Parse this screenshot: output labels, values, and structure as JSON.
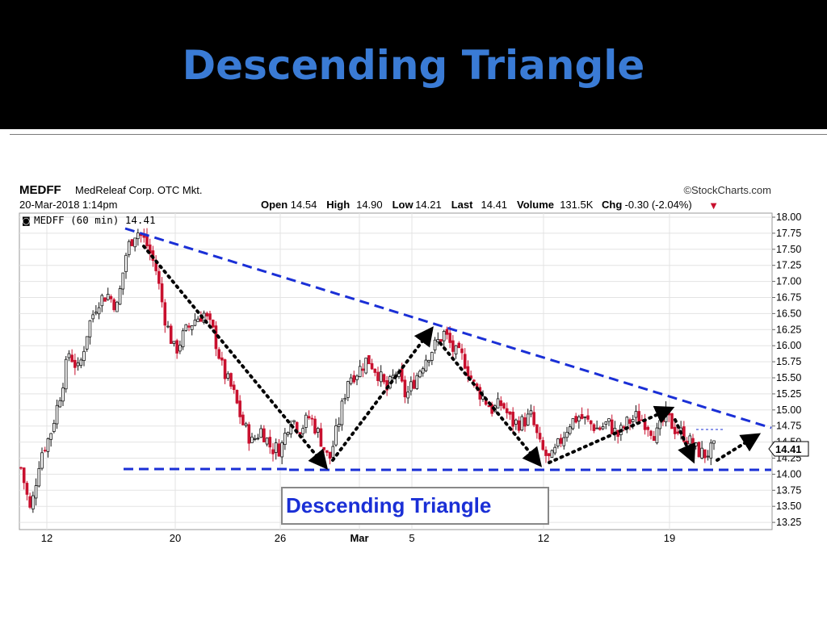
{
  "slide": {
    "title": "Descending Triangle"
  },
  "chart_header": {
    "symbol": "MEDFF",
    "company": "MedReleaf Corp. OTC Mkt.",
    "datetime": "20-Mar-2018 1:14pm",
    "source": "©StockCharts.com",
    "stats": [
      {
        "label": "Open",
        "value": "14.54"
      },
      {
        "label": "High",
        "value": "14.90"
      },
      {
        "label": "Low",
        "value": "14.21"
      },
      {
        "label": "Last",
        "value": "14.41"
      },
      {
        "label": "Volume",
        "value": "131.5K"
      },
      {
        "label": "Chg",
        "value": "-0.30 (-2.04%)"
      }
    ],
    "legend": "MEDFF (60 min) 14.41",
    "last_tag": "14.41"
  },
  "pattern_label": "Descending Triangle",
  "colors": {
    "up_candle": "#111111",
    "down_candle": "#c8102e",
    "trend_lines": "#1a2fd6",
    "title": "#3a7bd5",
    "grid": "#e3e3e3"
  },
  "chart_data": {
    "type": "candlestick",
    "title": "MEDFF (60 min)",
    "xlabel": "",
    "ylabel": "",
    "ylim": [
      13.1,
      18.05
    ],
    "y_ticks": [
      "18.00",
      "17.75",
      "17.50",
      "17.25",
      "17.00",
      "16.75",
      "16.50",
      "16.25",
      "16.00",
      "15.75",
      "15.50",
      "15.25",
      "15.00",
      "14.75",
      "14.50",
      "14.25",
      "14.00",
      "13.75",
      "13.50",
      "13.25"
    ],
    "x_ticks": [
      "12",
      "20",
      "26",
      "Mar",
      "5",
      "12",
      "19"
    ],
    "grid": true,
    "price_path": [
      [
        0,
        14.1
      ],
      [
        2,
        13.4
      ],
      [
        4,
        14.3
      ],
      [
        6,
        14.6
      ],
      [
        8,
        15.2
      ],
      [
        10,
        15.9
      ],
      [
        12,
        15.6
      ],
      [
        14,
        16.3
      ],
      [
        16,
        16.7
      ],
      [
        18,
        16.8
      ],
      [
        20,
        16.6
      ],
      [
        22,
        17.5
      ],
      [
        24,
        17.8
      ],
      [
        26,
        17.6
      ],
      [
        28,
        17.2
      ],
      [
        30,
        16.4
      ],
      [
        32,
        15.9
      ],
      [
        34,
        16.2
      ],
      [
        36,
        16.4
      ],
      [
        38,
        16.5
      ],
      [
        40,
        16.2
      ],
      [
        42,
        15.6
      ],
      [
        44,
        15.3
      ],
      [
        46,
        14.8
      ],
      [
        48,
        14.5
      ],
      [
        50,
        14.7
      ],
      [
        52,
        14.4
      ],
      [
        54,
        14.4
      ],
      [
        56,
        14.9
      ],
      [
        58,
        14.7
      ],
      [
        60,
        14.9
      ],
      [
        62,
        14.6
      ],
      [
        64,
        14.2
      ],
      [
        66,
        14.8
      ],
      [
        68,
        15.5
      ],
      [
        70,
        15.6
      ],
      [
        72,
        15.8
      ],
      [
        74,
        15.6
      ],
      [
        76,
        15.3
      ],
      [
        78,
        15.6
      ],
      [
        80,
        15.2
      ],
      [
        82,
        15.5
      ],
      [
        84,
        15.8
      ],
      [
        86,
        16.0
      ],
      [
        88,
        16.2
      ],
      [
        90,
        15.9
      ],
      [
        92,
        15.8
      ],
      [
        94,
        15.4
      ],
      [
        96,
        15.2
      ],
      [
        98,
        15.0
      ],
      [
        100,
        15.1
      ],
      [
        102,
        14.8
      ],
      [
        104,
        14.8
      ],
      [
        106,
        14.9
      ],
      [
        108,
        14.4
      ],
      [
        110,
        14.2
      ],
      [
        112,
        14.5
      ],
      [
        114,
        14.8
      ],
      [
        116,
        14.9
      ],
      [
        118,
        14.8
      ],
      [
        120,
        14.7
      ],
      [
        122,
        14.8
      ],
      [
        124,
        14.6
      ],
      [
        126,
        14.8
      ],
      [
        128,
        14.9
      ],
      [
        130,
        14.8
      ],
      [
        132,
        14.6
      ],
      [
        134,
        14.9
      ],
      [
        136,
        14.7
      ],
      [
        138,
        14.6
      ],
      [
        140,
        14.4
      ],
      [
        142,
        14.3
      ],
      [
        144,
        14.4
      ]
    ],
    "annotations": [
      {
        "kind": "resistance",
        "points": [
          [
            17.8,
            17.8
          ],
          [
            16.25,
            16.25
          ],
          [
            15.15,
            15.15
          ]
        ]
      },
      {
        "kind": "support",
        "value": 14.05
      }
    ],
    "series": [
      {
        "name": "MEDFF (60 min)",
        "last": 14.41
      }
    ]
  }
}
